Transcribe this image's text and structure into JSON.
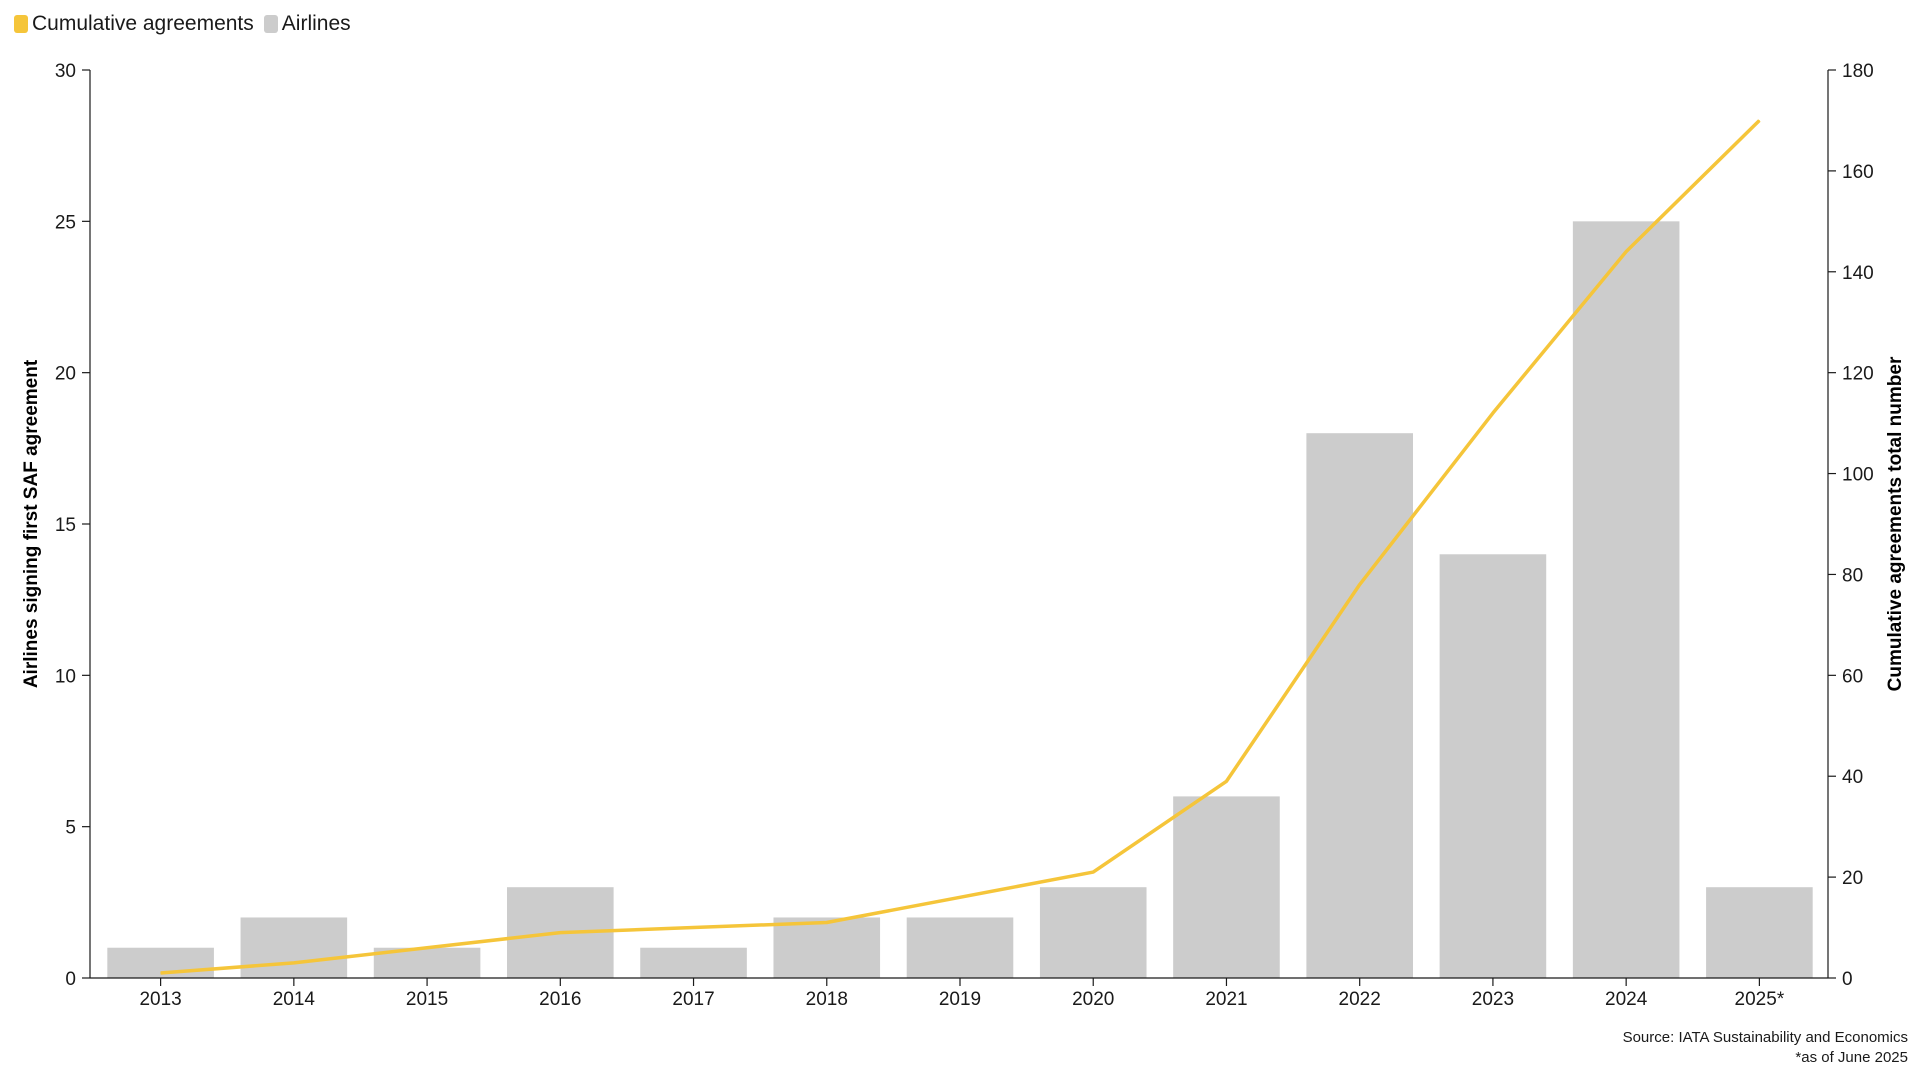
{
  "legend": [
    {
      "label": "Cumulative agreements",
      "color": "#F5C53A"
    },
    {
      "label": "Airlines",
      "color": "#CCCCCC"
    }
  ],
  "source": {
    "line1": "Source: IATA Sustainability and Economics",
    "line2": "*as of June 2025"
  },
  "chart_data": {
    "type": "bar",
    "categories": [
      "2013",
      "2014",
      "2015",
      "2016",
      "2017",
      "2018",
      "2019",
      "2020",
      "2021",
      "2022",
      "2023",
      "2024",
      "2025*"
    ],
    "series": [
      {
        "name": "Airlines",
        "type": "bar",
        "axis": "left",
        "color": "#CCCCCC",
        "values": [
          1,
          2,
          1,
          3,
          1,
          2,
          2,
          3,
          6,
          18,
          14,
          25,
          3
        ]
      },
      {
        "name": "Cumulative agreements",
        "type": "line",
        "axis": "right",
        "color": "#F5C53A",
        "values": [
          1,
          3,
          6,
          9,
          10,
          11,
          16,
          21,
          39,
          78,
          112,
          144,
          170
        ]
      }
    ],
    "ylabel": "Airlines signing first SAF agreement",
    "y2label": "Cumulative agreements total number",
    "ylim": [
      0,
      30
    ],
    "y2lim": [
      0,
      180
    ],
    "yticks": [
      0,
      5,
      10,
      15,
      20,
      25,
      30
    ],
    "y2ticks": [
      0,
      20,
      40,
      60,
      80,
      100,
      120,
      140,
      160,
      180
    ],
    "grid": false,
    "legend_position": "top-left"
  }
}
